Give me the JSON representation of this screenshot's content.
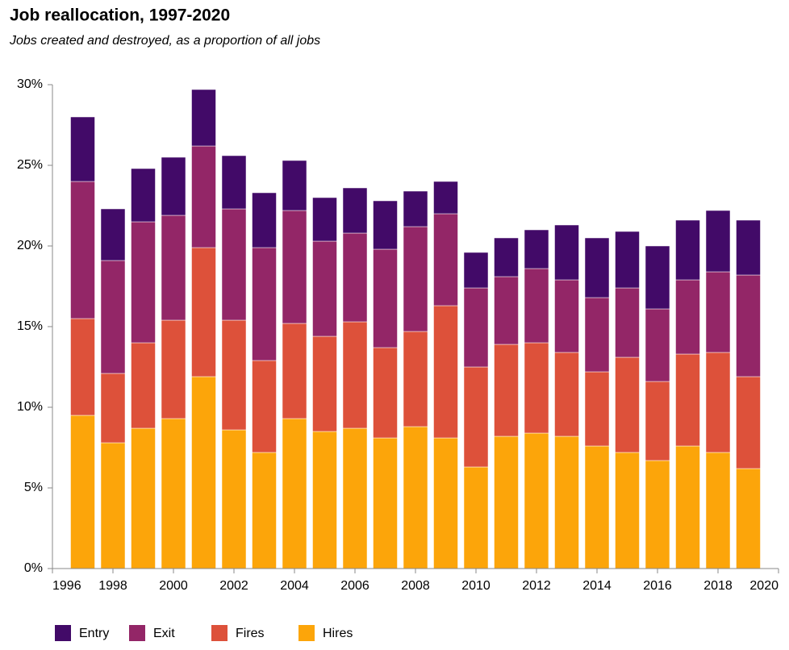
{
  "chart_data": {
    "type": "stacked_bar",
    "title": "Job reallocation, 1997-2020",
    "subtitle": "Jobs created and destroyed, as a proportion of all jobs",
    "x": [
      1997,
      1998,
      1999,
      2000,
      2001,
      2002,
      2003,
      2004,
      2005,
      2006,
      2007,
      2008,
      2009,
      2010,
      2011,
      2012,
      2013,
      2014,
      2015,
      2016,
      2017,
      2018,
      2019
    ],
    "series": [
      {
        "name": "Entry",
        "color": "#420a68",
        "values": [
          4.0,
          3.2,
          3.3,
          3.6,
          3.5,
          3.3,
          3.4,
          3.1,
          2.7,
          2.8,
          3.0,
          2.2,
          2.0,
          2.2,
          2.4,
          2.4,
          3.4,
          3.7,
          3.5,
          3.9,
          3.7,
          3.8,
          3.4
        ]
      },
      {
        "name": "Exit",
        "color": "#932667",
        "values": [
          8.5,
          7.0,
          7.5,
          6.5,
          6.3,
          6.9,
          7.0,
          7.0,
          5.9,
          5.5,
          6.1,
          6.5,
          5.7,
          4.9,
          4.2,
          4.6,
          4.5,
          4.6,
          4.3,
          4.5,
          4.6,
          5.0,
          6.3
        ]
      },
      {
        "name": "Fires",
        "color": "#dd513a",
        "values": [
          6.0,
          4.3,
          5.3,
          6.1,
          8.0,
          6.8,
          5.7,
          5.9,
          5.9,
          6.6,
          5.6,
          5.9,
          8.2,
          6.2,
          5.7,
          5.6,
          5.2,
          4.6,
          5.9,
          4.9,
          5.7,
          6.2,
          5.7
        ]
      },
      {
        "name": "Hires",
        "color": "#fca50a",
        "values": [
          9.5,
          7.8,
          8.7,
          9.3,
          11.9,
          8.6,
          7.2,
          9.3,
          8.5,
          8.7,
          8.1,
          8.8,
          8.1,
          6.3,
          8.2,
          8.4,
          8.2,
          7.6,
          7.2,
          6.7,
          7.6,
          7.2,
          6.2
        ]
      }
    ],
    "xlim": [
      1996,
      2020
    ],
    "xticks": [
      1996,
      1998,
      2000,
      2002,
      2004,
      2006,
      2008,
      2010,
      2012,
      2014,
      2016,
      2018,
      2020
    ],
    "ylim": [
      0,
      30
    ],
    "yticks": [
      {
        "value": 0,
        "label": "0%"
      },
      {
        "value": 5,
        "label": "5%"
      },
      {
        "value": 10,
        "label": "10%"
      },
      {
        "value": 15,
        "label": "15%"
      },
      {
        "value": 20,
        "label": "20%"
      },
      {
        "value": 25,
        "label": "25%"
      },
      {
        "value": 30,
        "label": "30%"
      }
    ],
    "legend": "bottom-left"
  }
}
